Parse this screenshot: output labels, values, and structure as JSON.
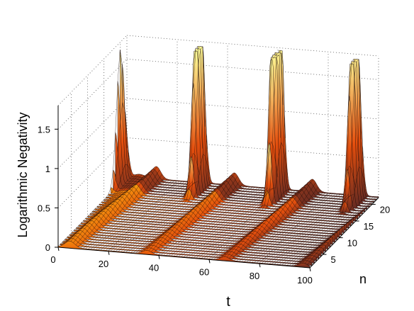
{
  "chart_data": {
    "type": "surface3d",
    "xlabel": "t",
    "ylabel": "n",
    "zlabel": "Logarithmic Negativity",
    "xlim": [
      0,
      100
    ],
    "ylim": [
      1,
      22
    ],
    "zlim": [
      0,
      1.8
    ],
    "x_ticks": [
      "0",
      "20",
      "40",
      "60",
      "80",
      "100"
    ],
    "y_ticks": [
      "5",
      "10",
      "15",
      "20"
    ],
    "z_ticks": [
      "0",
      "0.5",
      "1",
      "1.5"
    ],
    "grid": true,
    "colormap": "hot",
    "peaks": [
      {
        "t": 31,
        "n": 20,
        "value": 1.7
      },
      {
        "t": 62,
        "n": 20,
        "value": 1.7
      },
      {
        "t": 93,
        "n": 20,
        "value": 1.7
      }
    ],
    "period": 31
  }
}
